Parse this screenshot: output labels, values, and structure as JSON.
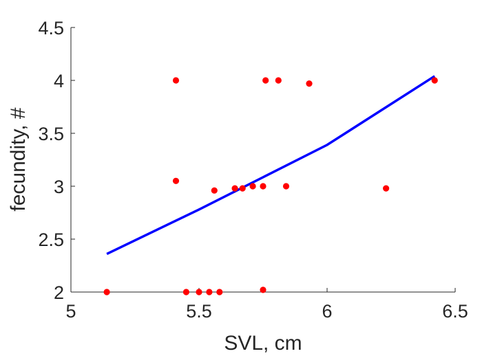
{
  "chart_data": {
    "type": "scatter",
    "title": "",
    "xlabel": "SVL, cm",
    "ylabel": "fecundity, #",
    "xlim": [
      5,
      6.5
    ],
    "ylim": [
      2,
      4.5
    ],
    "xticks": [
      "5",
      "5.5",
      "6",
      "6.5"
    ],
    "yticks": [
      "2",
      "2.5",
      "3",
      "3.5",
      "4",
      "4.5"
    ],
    "grid": false,
    "box": false,
    "series": [
      {
        "kind": "points",
        "color": "#ff0000",
        "points": [
          [
            5.14,
            2.0
          ],
          [
            5.41,
            4.0
          ],
          [
            5.41,
            3.05
          ],
          [
            5.45,
            2.0
          ],
          [
            5.5,
            2.0
          ],
          [
            5.54,
            2.0
          ],
          [
            5.56,
            2.96
          ],
          [
            5.58,
            2.0
          ],
          [
            5.64,
            2.98
          ],
          [
            5.67,
            2.98
          ],
          [
            5.71,
            3.0
          ],
          [
            5.75,
            3.0
          ],
          [
            5.75,
            2.02
          ],
          [
            5.76,
            4.0
          ],
          [
            5.81,
            4.0
          ],
          [
            5.84,
            3.0
          ],
          [
            5.93,
            3.97
          ],
          [
            6.23,
            2.98
          ],
          [
            6.42,
            4.0
          ]
        ]
      },
      {
        "kind": "fit-line",
        "color": "#0000ff",
        "points": [
          [
            5.14,
            2.36
          ],
          [
            5.5,
            2.78
          ],
          [
            6.0,
            3.39
          ],
          [
            6.42,
            4.04
          ]
        ]
      }
    ]
  }
}
